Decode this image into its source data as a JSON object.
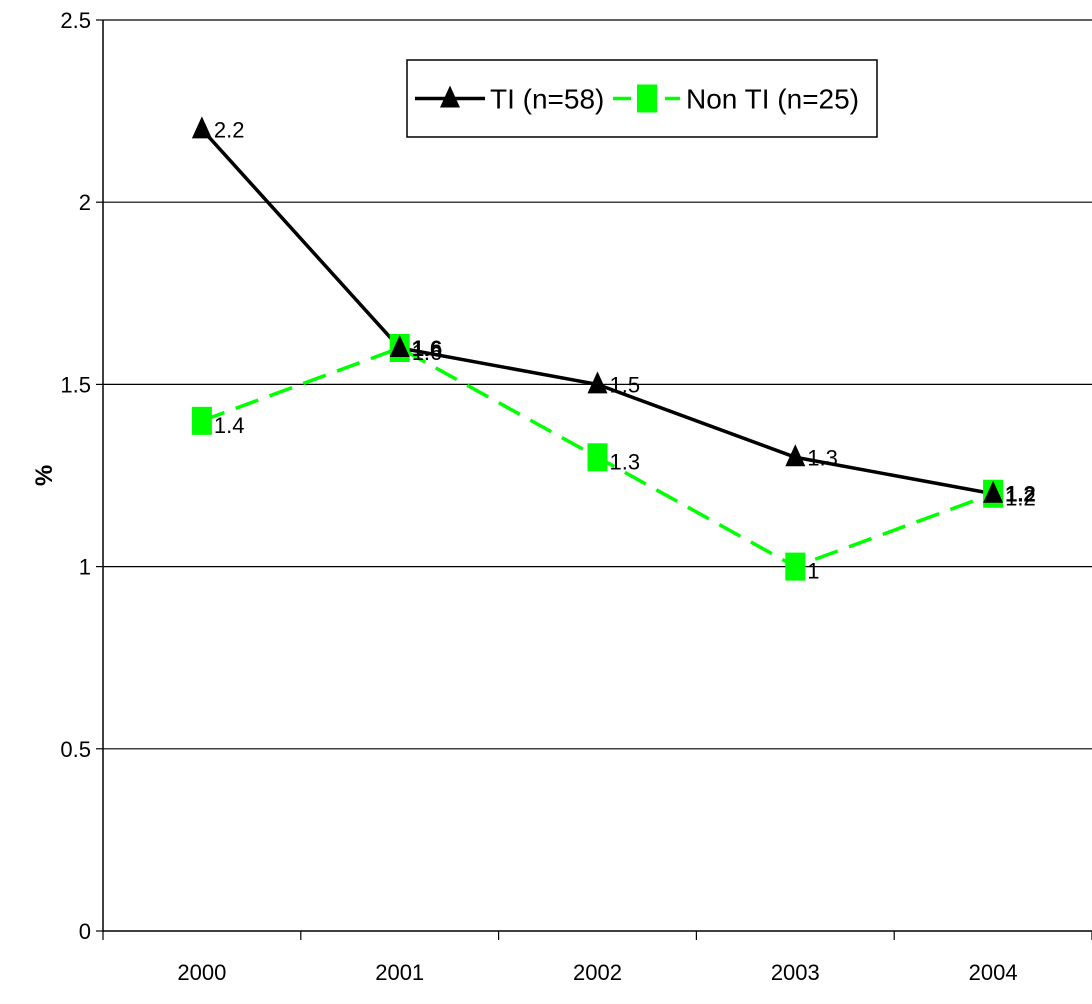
{
  "chart_data": {
    "type": "line",
    "title": "",
    "xlabel": "",
    "ylabel": "%",
    "categories": [
      "2000",
      "2001",
      "2002",
      "2003",
      "2004"
    ],
    "ylim": [
      0,
      2.5
    ],
    "yticks": [
      "0",
      "0.5",
      "1",
      "1.5",
      "2",
      "2.5"
    ],
    "grid": true,
    "legend": "top-center",
    "series": [
      {
        "name": "TI (n=58)",
        "values": [
          2.2,
          1.6,
          1.5,
          1.3,
          1.2
        ],
        "labels": [
          "2.2",
          "1.6",
          "1.5",
          "1.3",
          "1.2"
        ],
        "bold": [
          false,
          true,
          false,
          false,
          true
        ],
        "color": "#000000",
        "marker": "triangle",
        "line_style": "solid"
      },
      {
        "name": "Non TI (n=25)",
        "values": [
          1.4,
          1.6,
          1.3,
          1.0,
          1.2
        ],
        "labels": [
          "1.4",
          "1.6",
          "1.3",
          "1",
          "1.2"
        ],
        "bold": [
          false,
          false,
          false,
          false,
          false
        ],
        "color": "#00ff00",
        "marker": "square",
        "line_style": "dashed"
      }
    ]
  }
}
